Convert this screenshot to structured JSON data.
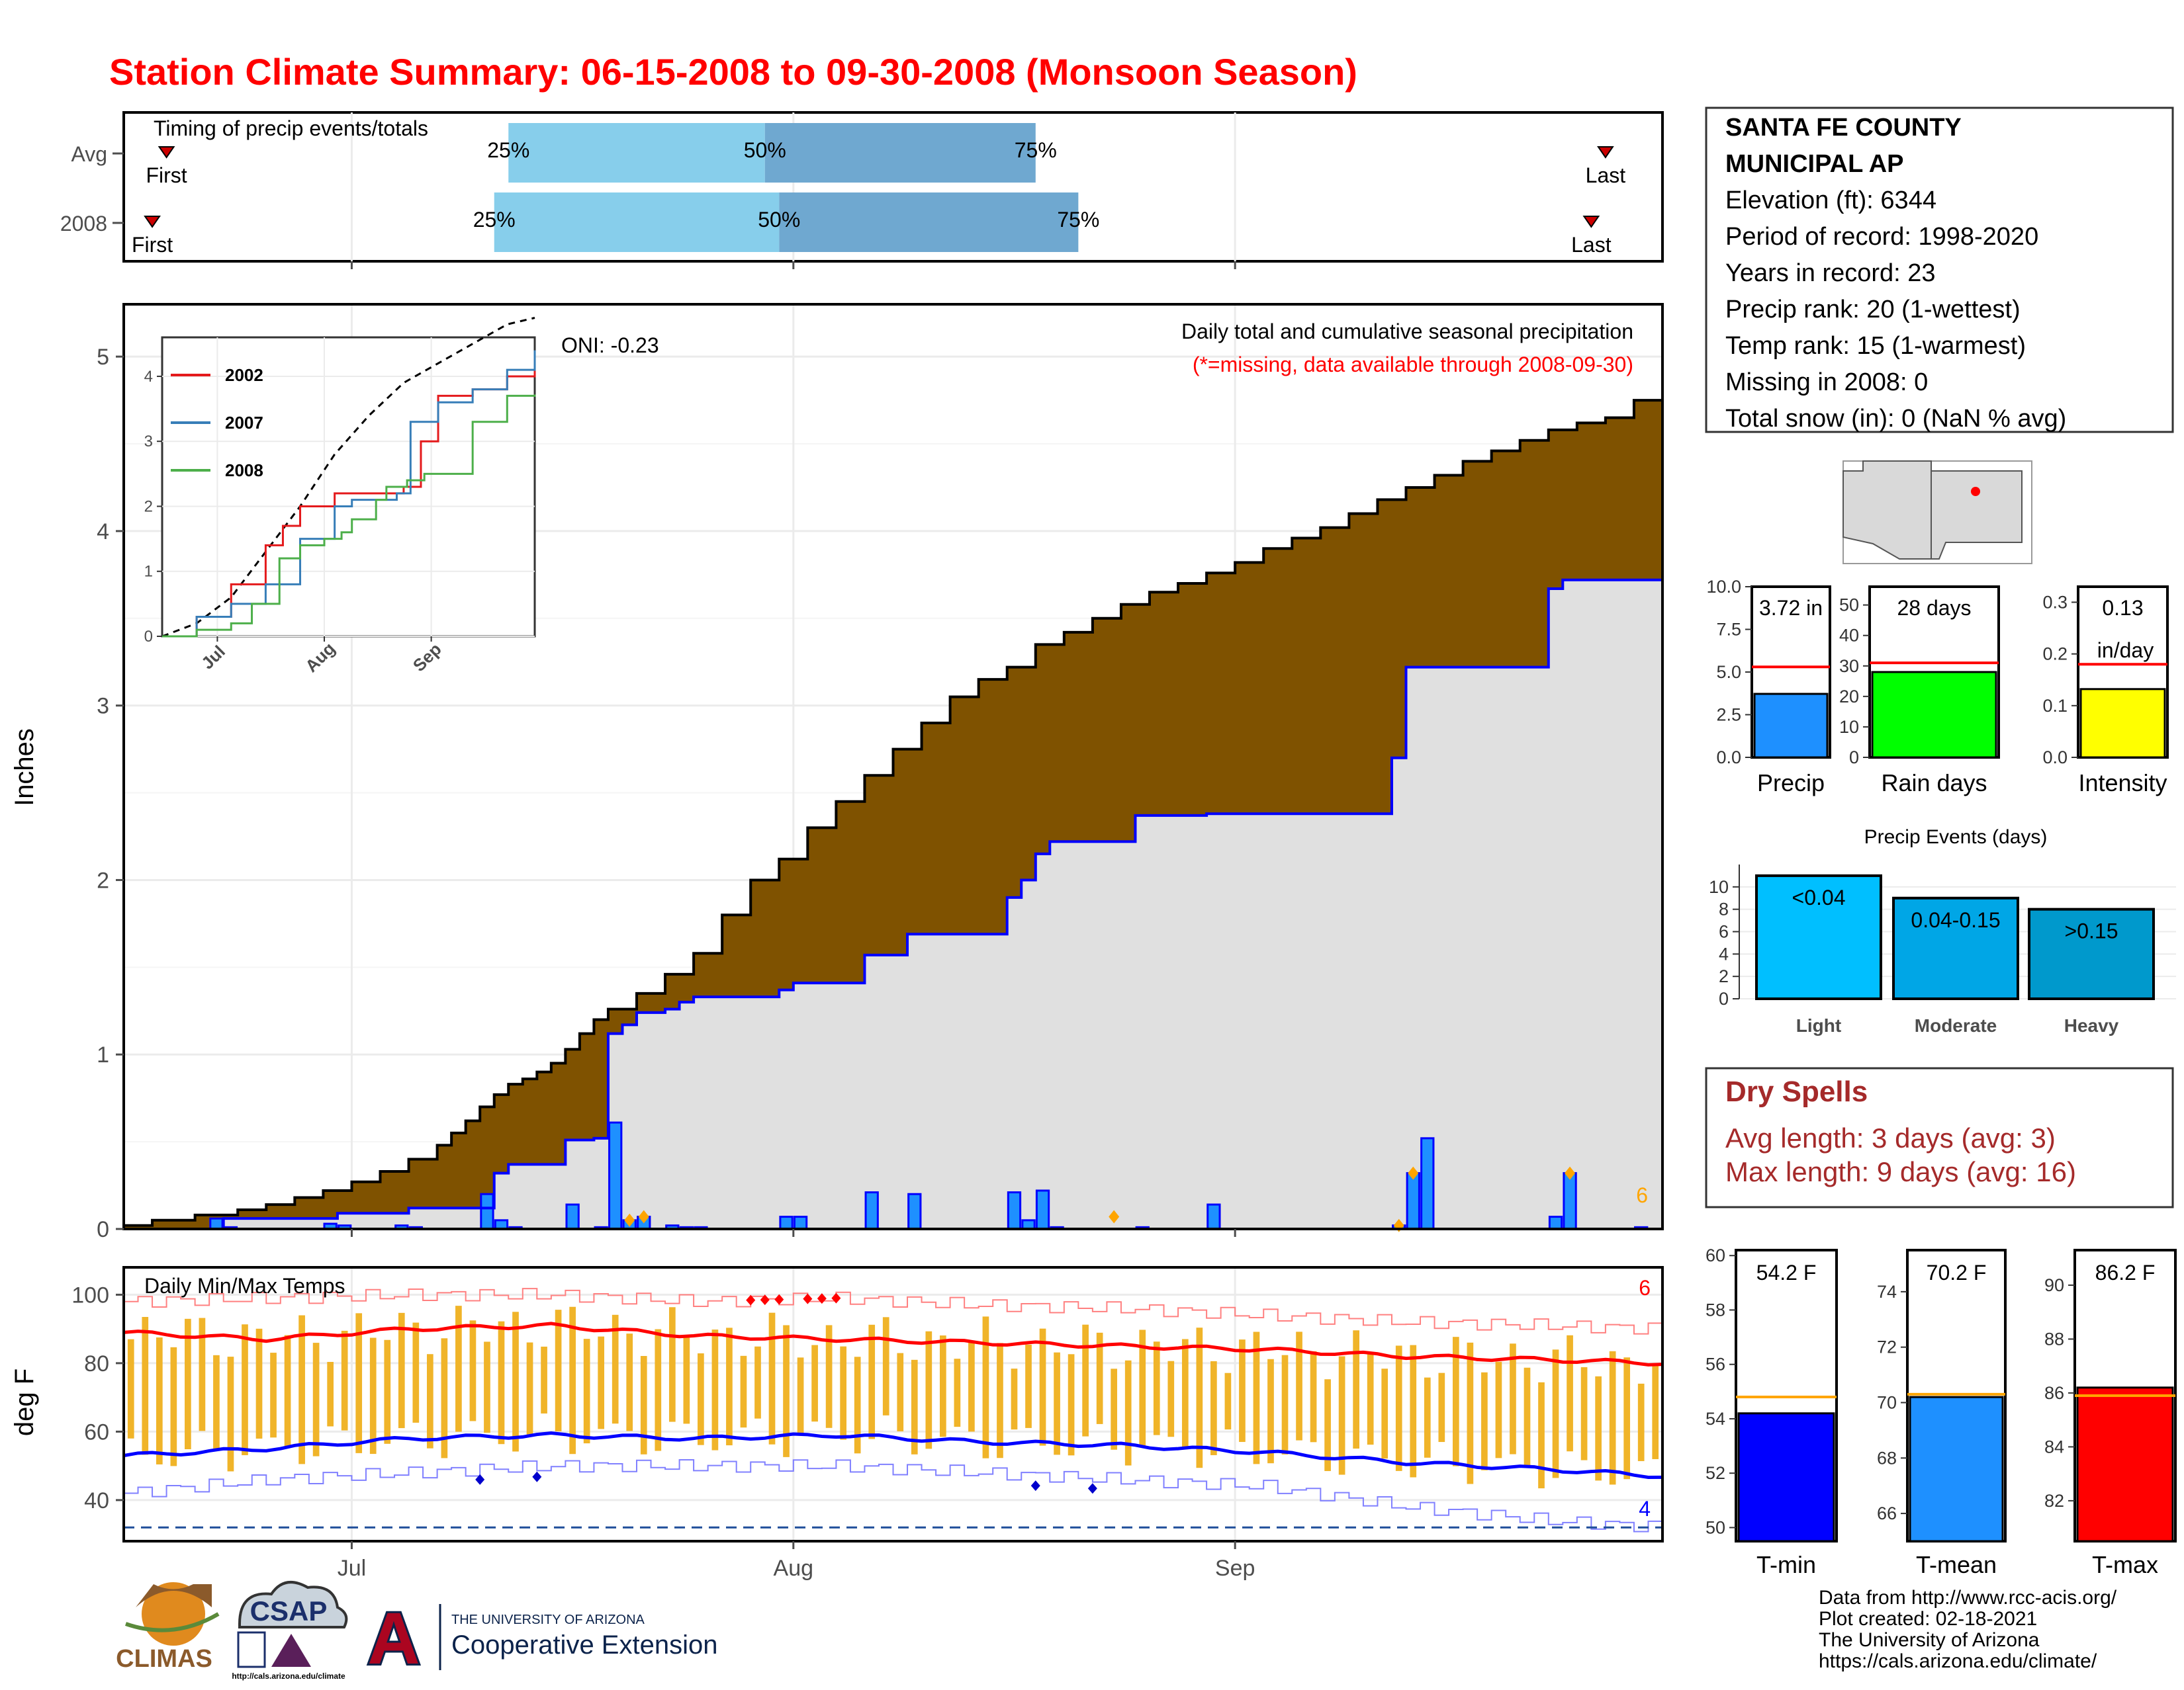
{
  "title": "Station Climate Summary: 06-15-2008 to 09-30-2008 (Monsoon Season)",
  "colors": {
    "title": "#ff0000",
    "light_blue": "#87ceeb",
    "mid_blue": "#6fa8d0",
    "brown": "#7f5200",
    "green": "#008000",
    "gray_fill": "#e0e0e0",
    "bar_blue": "#1e90ff",
    "dark_blue": "#0000ff",
    "orange": "#ffa500",
    "temp_bar": "#f0b429",
    "red": "#ff0000",
    "dry_spell": "#a52a2a"
  },
  "timing_panel": {
    "title": "Timing of precip events/totals",
    "rows": [
      {
        "label": "Avg",
        "first": "First",
        "last": "Last",
        "p25": "25%",
        "p50": "50%",
        "p75": "75%",
        "first_date": "2008-06-18",
        "last_date": "2008-09-27",
        "p25_date": "2008-07-12",
        "p50_date": "2008-07-30",
        "p75_date": "2008-08-18"
      },
      {
        "label": "2008",
        "first": "First",
        "last": "Last",
        "p25": "25%",
        "p50": "50%",
        "p75": "75%",
        "first_date": "2008-06-17",
        "last_date": "2008-09-26",
        "p25_date": "2008-07-11",
        "p50_date": "2008-07-31",
        "p75_date": "2008-08-21"
      }
    ]
  },
  "main_panel": {
    "ylabel": "Inches",
    "oni": "ONI: -0.23",
    "subtitle": "Daily total and cumulative seasonal precipitation",
    "note": "(*=missing, data available through 2008-09-30)",
    "corner_count": "6",
    "month_labels": [
      "Jul",
      "Aug",
      "Sep"
    ]
  },
  "inset_panel": {
    "legend": [
      {
        "name": "2002",
        "color": "#e41a1c"
      },
      {
        "name": "2007",
        "color": "#377eb8"
      },
      {
        "name": "2008",
        "color": "#4daf4a"
      }
    ],
    "month_labels": [
      "Jul",
      "Aug",
      "Sep"
    ]
  },
  "temp_panel": {
    "title": "Daily Min/Max Temps",
    "ylabel": "deg F",
    "count_high": "6",
    "count_low": "4",
    "month_labels": [
      "Jul",
      "Aug",
      "Sep"
    ]
  },
  "station": {
    "lines": [
      "SANTA FE COUNTY",
      "MUNICIPAL AP",
      "Elevation (ft): 6344",
      "Period of record: 1998-2020",
      "Years in record: 23",
      "Precip rank: 20 (1-wettest)",
      "Temp rank: 15 (1-warmest)",
      "Missing in 2008: 0",
      "Total snow (in): 0 (NaN % avg)"
    ]
  },
  "summary_bars": [
    {
      "label": "Precip",
      "value_text": "3.72 in",
      "value": 3.72,
      "avg": 5.3,
      "ymax": 10,
      "ticks": [
        "0.0",
        "2.5",
        "5.0",
        "7.5",
        "10.0"
      ],
      "tick_values": [
        0,
        2.5,
        5,
        7.5,
        10
      ],
      "color": "#1e90ff"
    },
    {
      "label": "Rain days",
      "value_text": "28 days",
      "value": 28,
      "avg": 31,
      "ymax": 56,
      "ticks": [
        "0",
        "10",
        "20",
        "30",
        "40",
        "50"
      ],
      "tick_values": [
        0,
        10,
        20,
        30,
        40,
        50
      ],
      "color": "#00ff00"
    },
    {
      "label": "Intensity",
      "value_text": "0.13",
      "value_text2": "in/day",
      "value": 0.132,
      "avg": 0.18,
      "ymax": 0.33,
      "ticks": [
        "0.0",
        "0.1",
        "0.2",
        "0.3"
      ],
      "tick_values": [
        0,
        0.1,
        0.2,
        0.3
      ],
      "color": "#ffff00"
    }
  ],
  "events": {
    "title": "Precip Events (days)",
    "categories": [
      "Light",
      "Moderate",
      "Heavy"
    ],
    "labels": [
      "<0.04",
      "0.04-0.15",
      ">0.15"
    ],
    "values": [
      11,
      9,
      8
    ],
    "ticks": [
      "0",
      "2",
      "4",
      "6",
      "8",
      "10"
    ],
    "colors": [
      "#00bfff",
      "#00a6e6",
      "#0099cc"
    ]
  },
  "dry_spells": {
    "title": "Dry Spells",
    "avg_length": "Avg length: 3 days (avg: 3)",
    "max_length": "Max length: 9 days (avg: 16)"
  },
  "temp_bars": [
    {
      "label": "T-min",
      "value_text": "54.2 F",
      "value": 54.2,
      "avg": 54.8,
      "ymin": 49.5,
      "ymax": 60.2,
      "ticks": [
        "50",
        "52",
        "54",
        "56",
        "58",
        "60"
      ],
      "tick_values": [
        50,
        52,
        54,
        56,
        58,
        60
      ],
      "color": "#0000ff"
    },
    {
      "label": "T-mean",
      "value_text": "70.2 F",
      "value": 70.2,
      "avg": 70.3,
      "ymin": 65,
      "ymax": 75.5,
      "ticks": [
        "66",
        "68",
        "70",
        "72",
        "74"
      ],
      "tick_values": [
        66,
        68,
        70,
        72,
        74
      ],
      "color": "#1e90ff"
    },
    {
      "label": "T-max",
      "value_text": "86.2 F",
      "value": 86.2,
      "avg": 85.9,
      "ymin": 80.5,
      "ymax": 91.3,
      "ticks": [
        "82",
        "84",
        "86",
        "88",
        "90"
      ],
      "tick_values": [
        82,
        84,
        86,
        88,
        90
      ],
      "color": "#ff0000"
    }
  ],
  "credits": {
    "lines": [
      "Data from http://www.rcc-acis.org/",
      "Plot created: 02-18-2021",
      "The University of Arizona",
      "https://cals.arizona.edu/climate/"
    ],
    "logo_climas": "CLIMAS",
    "logo_csap": "CSAP",
    "logo_csap_url": "http://cals.arizona.edu/climate",
    "ua_line1": "THE UNIVERSITY OF ARIZONA",
    "ua_line2": "Cooperative Extension",
    "ua_letter": "A"
  },
  "chart_data": [
    {
      "type": "step-area",
      "name": "cumulative-precip",
      "ylabel": "Inches",
      "ylim": [
        0,
        5.3
      ],
      "yticks": [
        0,
        1,
        2,
        3,
        4,
        5
      ],
      "x_start": "2008-06-15",
      "x_end": "2008-09-30",
      "avg_cumulative": {
        "days": [
          0,
          2,
          5,
          8,
          10,
          12,
          14,
          16,
          18,
          20,
          22,
          23,
          24,
          25,
          26,
          27,
          28,
          29,
          30,
          31,
          32,
          33,
          34,
          36,
          38,
          40,
          42,
          44,
          46,
          48,
          50,
          52,
          54,
          56,
          58,
          60,
          62,
          64,
          66,
          68,
          70,
          72,
          74,
          76,
          78,
          80,
          82,
          84,
          86,
          88,
          90,
          92,
          94,
          96,
          98,
          100,
          102,
          104,
          106,
          108
        ],
        "values": [
          0.02,
          0.05,
          0.08,
          0.11,
          0.14,
          0.18,
          0.22,
          0.27,
          0.33,
          0.4,
          0.48,
          0.55,
          0.62,
          0.7,
          0.77,
          0.83,
          0.86,
          0.9,
          0.95,
          1.03,
          1.12,
          1.2,
          1.26,
          1.35,
          1.46,
          1.58,
          1.8,
          2.0,
          2.12,
          2.3,
          2.45,
          2.6,
          2.75,
          2.9,
          3.05,
          3.15,
          3.22,
          3.35,
          3.42,
          3.5,
          3.58,
          3.65,
          3.7,
          3.76,
          3.82,
          3.9,
          3.96,
          4.02,
          4.1,
          4.18,
          4.25,
          4.32,
          4.4,
          4.46,
          4.52,
          4.58,
          4.62,
          4.65,
          4.75,
          4.87
        ]
      },
      "obs_cumulative": {
        "days": [
          0,
          6,
          7,
          14,
          15,
          19,
          20,
          25,
          26,
          27,
          31,
          33,
          34,
          35,
          36,
          38,
          39,
          40,
          45,
          46,
          47,
          51,
          52,
          54,
          55,
          61,
          62,
          63,
          64,
          65,
          66,
          70,
          71,
          75,
          76,
          88,
          89,
          90,
          91,
          100,
          101,
          106,
          108
        ],
        "values": [
          0,
          0,
          0.06,
          0.06,
          0.09,
          0.09,
          0.12,
          0.12,
          0.32,
          0.37,
          0.51,
          0.52,
          1.12,
          1.17,
          1.24,
          1.26,
          1.3,
          1.33,
          1.33,
          1.37,
          1.41,
          1.41,
          1.57,
          1.57,
          1.69,
          1.69,
          1.9,
          2.0,
          2.15,
          2.22,
          2.22,
          2.22,
          2.37,
          2.37,
          2.38,
          2.38,
          2.7,
          3.22,
          3.22,
          3.67,
          3.72,
          3.72,
          3.72
        ]
      },
      "daily_precip": {
        "days": [
          6,
          7,
          14,
          15,
          19,
          20,
          25,
          26,
          27,
          31,
          33,
          34,
          35,
          36,
          38,
          39,
          40,
          46,
          47,
          52,
          55,
          62,
          63,
          64,
          65,
          71,
          76,
          89,
          90,
          91,
          100,
          101,
          106
        ],
        "values": [
          0.06,
          0.01,
          0.03,
          0.02,
          0.02,
          0.01,
          0.2,
          0.05,
          0.01,
          0.14,
          0.01,
          0.61,
          0.05,
          0.07,
          0.02,
          0.01,
          0.01,
          0.07,
          0.07,
          0.21,
          0.2,
          0.21,
          0.05,
          0.22,
          0.01,
          0.01,
          0.14,
          0.02,
          0.32,
          0.52,
          0.07,
          0.32,
          0.01
        ]
      },
      "missing_markers_days": [
        35,
        36,
        69,
        89,
        90,
        101
      ]
    },
    {
      "type": "line",
      "name": "inset-cumulative",
      "ylim": [
        0,
        4.6
      ],
      "yticks": [
        0,
        1,
        2,
        3,
        4
      ],
      "series": [
        {
          "name": "Avg",
          "x": [
            0,
            10,
            20,
            30,
            40,
            50,
            60,
            70,
            80,
            90,
            100,
            108
          ],
          "y": [
            0,
            0.2,
            0.6,
            1.3,
            2.0,
            2.8,
            3.4,
            3.9,
            4.2,
            4.5,
            4.8,
            4.9
          ]
        },
        {
          "name": "2002",
          "x": [
            0,
            10,
            20,
            30,
            35,
            40,
            50,
            60,
            70,
            75,
            80,
            85,
            90,
            100,
            108
          ],
          "y": [
            0,
            0.3,
            0.8,
            1.4,
            1.7,
            2.0,
            2.2,
            2.2,
            2.3,
            3.0,
            3.7,
            3.7,
            3.8,
            4.0,
            4.2
          ]
        },
        {
          "name": "2007",
          "x": [
            0,
            10,
            20,
            30,
            40,
            50,
            55,
            60,
            68,
            72,
            80,
            90,
            100,
            108
          ],
          "y": [
            0,
            0.3,
            0.5,
            0.8,
            1.5,
            2.0,
            2.1,
            2.1,
            2.2,
            3.3,
            3.6,
            3.8,
            4.1,
            4.4
          ]
        },
        {
          "name": "2008",
          "x": [
            0,
            10,
            20,
            26,
            34,
            40,
            47,
            52,
            55,
            62,
            65,
            71,
            76,
            90,
            100,
            108
          ],
          "y": [
            0,
            0.1,
            0.2,
            0.5,
            1.2,
            1.4,
            1.5,
            1.6,
            1.8,
            2.1,
            2.3,
            2.4,
            2.5,
            3.3,
            3.7,
            3.72
          ]
        }
      ]
    },
    {
      "type": "bar-range",
      "name": "daily-temps",
      "ylabel": "deg F",
      "ylim": [
        28,
        108
      ],
      "yticks": [
        40,
        60,
        80,
        100
      ],
      "freeze_line": 32,
      "avg_max": {
        "x": [
          0,
          10,
          20,
          30,
          40,
          50,
          60,
          70,
          80,
          90,
          100,
          108
        ],
        "y": [
          89,
          87,
          90,
          91,
          88,
          87,
          86,
          85,
          84,
          82,
          81,
          80
        ]
      },
      "avg_min": {
        "x": [
          0,
          10,
          20,
          30,
          40,
          50,
          60,
          70,
          80,
          90,
          100,
          108
        ],
        "y": [
          53,
          55,
          58,
          59,
          58,
          59,
          57,
          56,
          54,
          51,
          49,
          47
        ]
      },
      "record_max": {
        "x": [
          0,
          10,
          20,
          30,
          40,
          50,
          60,
          70,
          80,
          90,
          100,
          108
        ],
        "y": [
          98,
          99,
          100,
          100,
          98,
          99,
          97,
          96,
          94,
          92,
          91,
          90
        ]
      },
      "record_min": {
        "x": [
          0,
          10,
          20,
          30,
          40,
          50,
          60,
          70,
          80,
          90,
          100,
          108
        ],
        "y": [
          42,
          46,
          48,
          50,
          50,
          50,
          48,
          46,
          44,
          38,
          34,
          32
        ]
      },
      "record_high_days": [
        44,
        45,
        46,
        48,
        49,
        50
      ],
      "record_low_days": [
        25,
        29,
        64,
        68
      ]
    },
    {
      "type": "bar",
      "name": "precip-events",
      "categories": [
        "Light",
        "Moderate",
        "Heavy"
      ],
      "values": [
        11,
        9,
        8
      ]
    }
  ]
}
